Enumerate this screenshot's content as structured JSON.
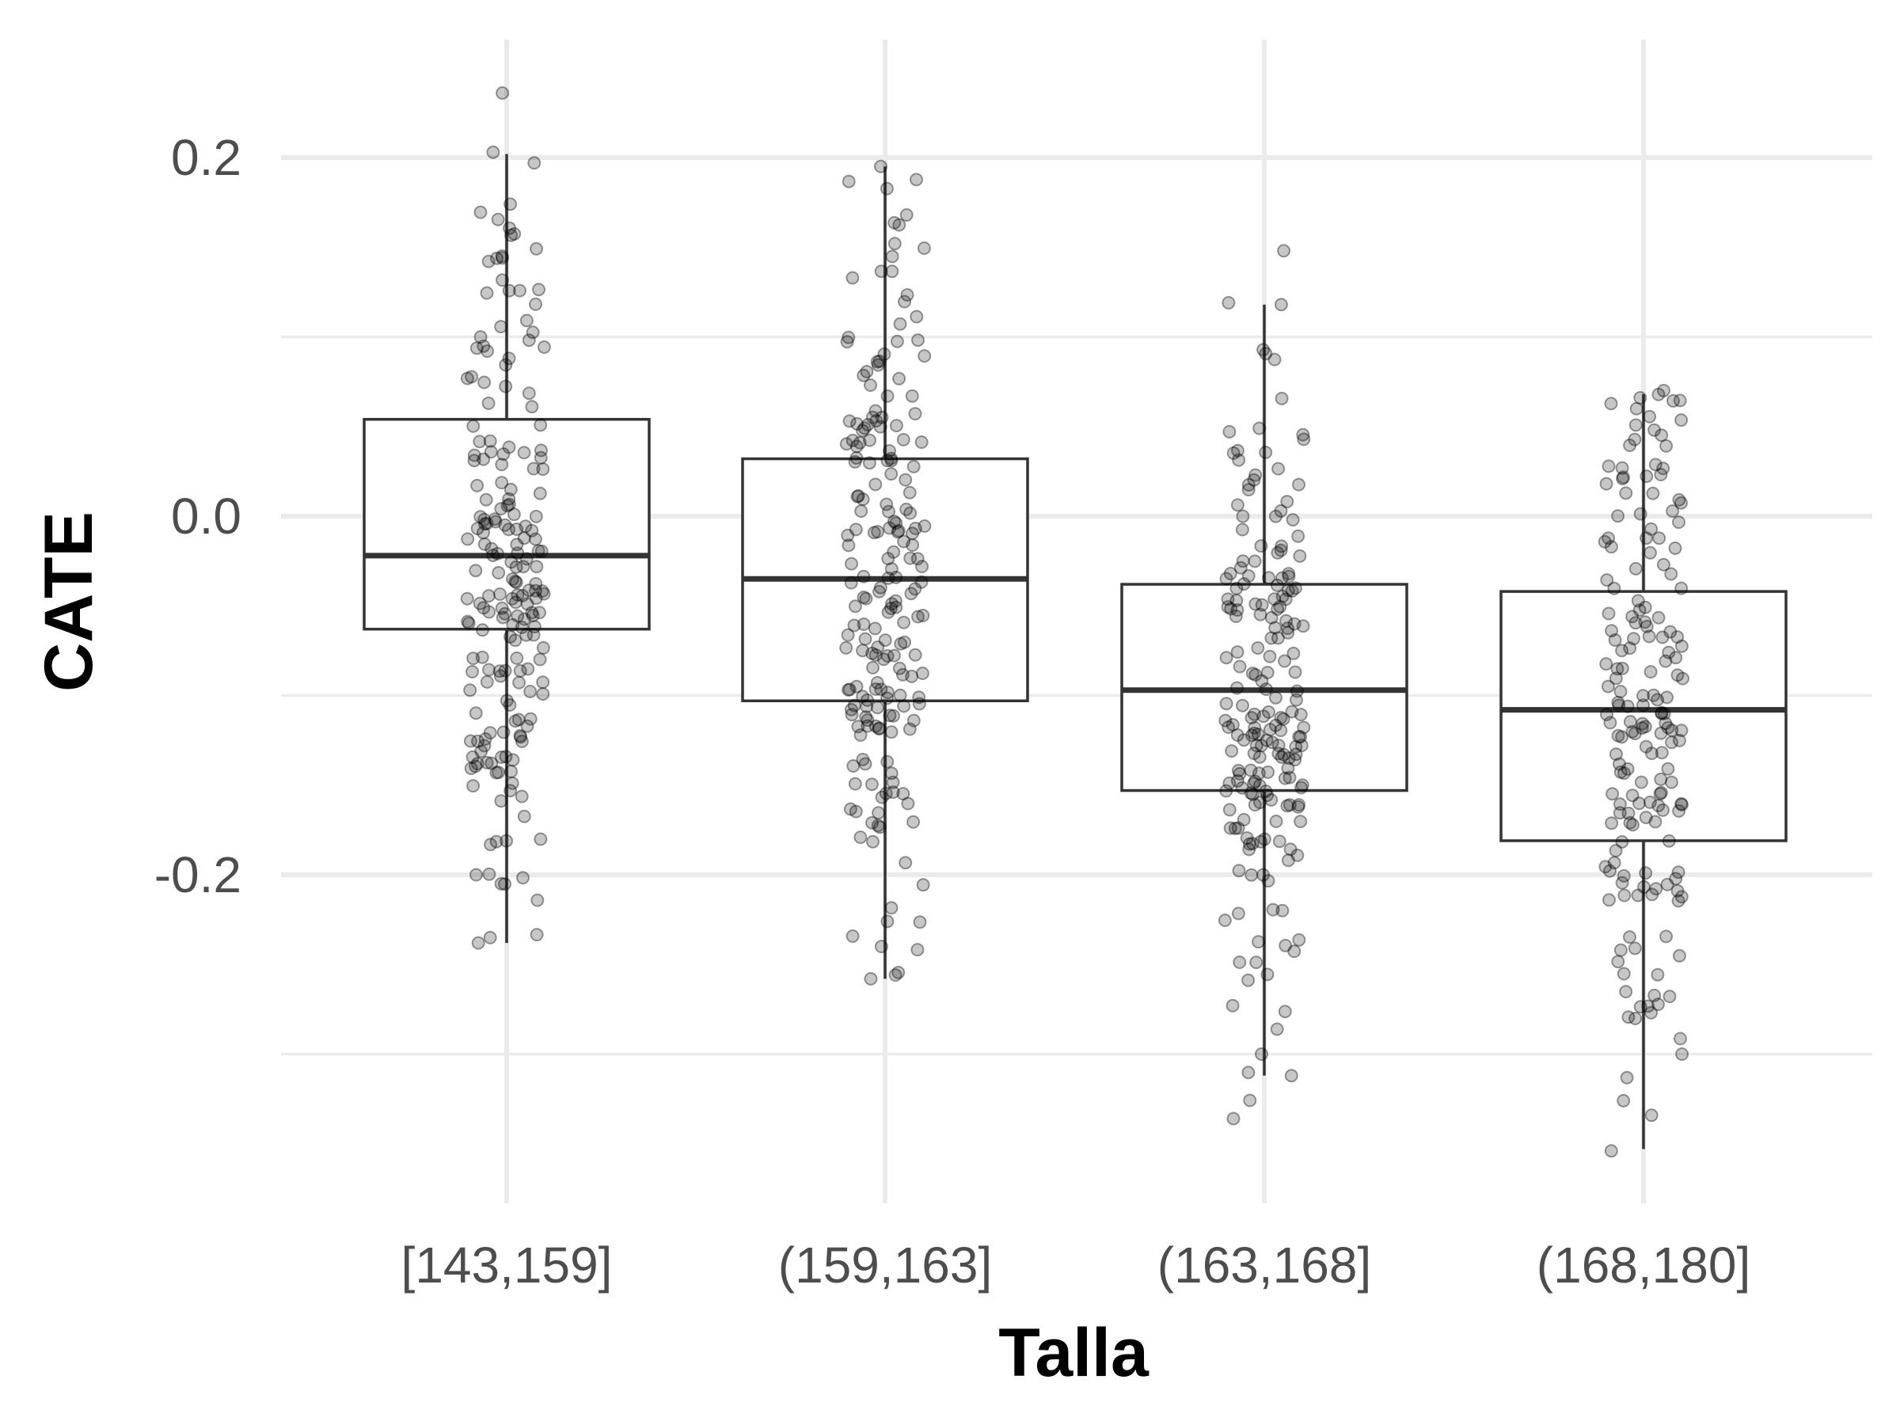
{
  "chart_data": {
    "type": "box",
    "xlabel": "Talla",
    "ylabel": "CATE",
    "categories": [
      "[143,159]",
      "(159,163]",
      "(163,168]",
      "(168,180]"
    ],
    "ylim": [
      -0.385,
      0.27
    ],
    "yticks": [
      {
        "value": 0.2,
        "label": "0.2"
      },
      {
        "value": 0.0,
        "label": "0.0"
      },
      {
        "value": -0.2,
        "label": "-0.2"
      }
    ],
    "minor_yticks": [
      0.1,
      -0.1,
      -0.3
    ],
    "grid": true,
    "boxes": [
      {
        "category": "[143,159]",
        "q1": -0.063,
        "median": -0.022,
        "q3": 0.054,
        "whisker_low": -0.238,
        "whisker_high": 0.202
      },
      {
        "category": "(159,163]",
        "q1": -0.103,
        "median": -0.035,
        "q3": 0.032,
        "whisker_low": -0.258,
        "whisker_high": 0.195
      },
      {
        "category": "(163,168]",
        "q1": -0.153,
        "median": -0.097,
        "q3": -0.038,
        "whisker_low": -0.312,
        "whisker_high": 0.118
      },
      {
        "category": "(168,180]",
        "q1": -0.181,
        "median": -0.108,
        "q3": -0.042,
        "whisker_low": -0.353,
        "whisker_high": 0.068
      }
    ],
    "points": [
      {
        "category": "[143,159]",
        "n": 200,
        "min": -0.238,
        "max": 0.236,
        "extremes": [
          0.236,
          0.203,
          0.197,
          0.174,
          -0.2,
          -0.205,
          -0.238
        ]
      },
      {
        "category": "(159,163]",
        "n": 200,
        "min": -0.258,
        "max": 0.195,
        "extremes": [
          0.195,
          0.168,
          0.152,
          -0.226,
          -0.24,
          -0.258
        ]
      },
      {
        "category": "(163,168]",
        "n": 200,
        "min": -0.336,
        "max": 0.148,
        "extremes": [
          0.148,
          0.119,
          0.118,
          -0.3,
          -0.312,
          -0.336
        ]
      },
      {
        "category": "(168,180]",
        "n": 180,
        "min": -0.354,
        "max": 0.07,
        "extremes": [
          0.07,
          0.066,
          0.048,
          -0.3,
          -0.326,
          -0.354
        ]
      }
    ],
    "colors": {
      "box_outline": "#333333",
      "point": "#000000",
      "grid": "#ebebeb",
      "tick_text": "#4d4d4d"
    }
  }
}
